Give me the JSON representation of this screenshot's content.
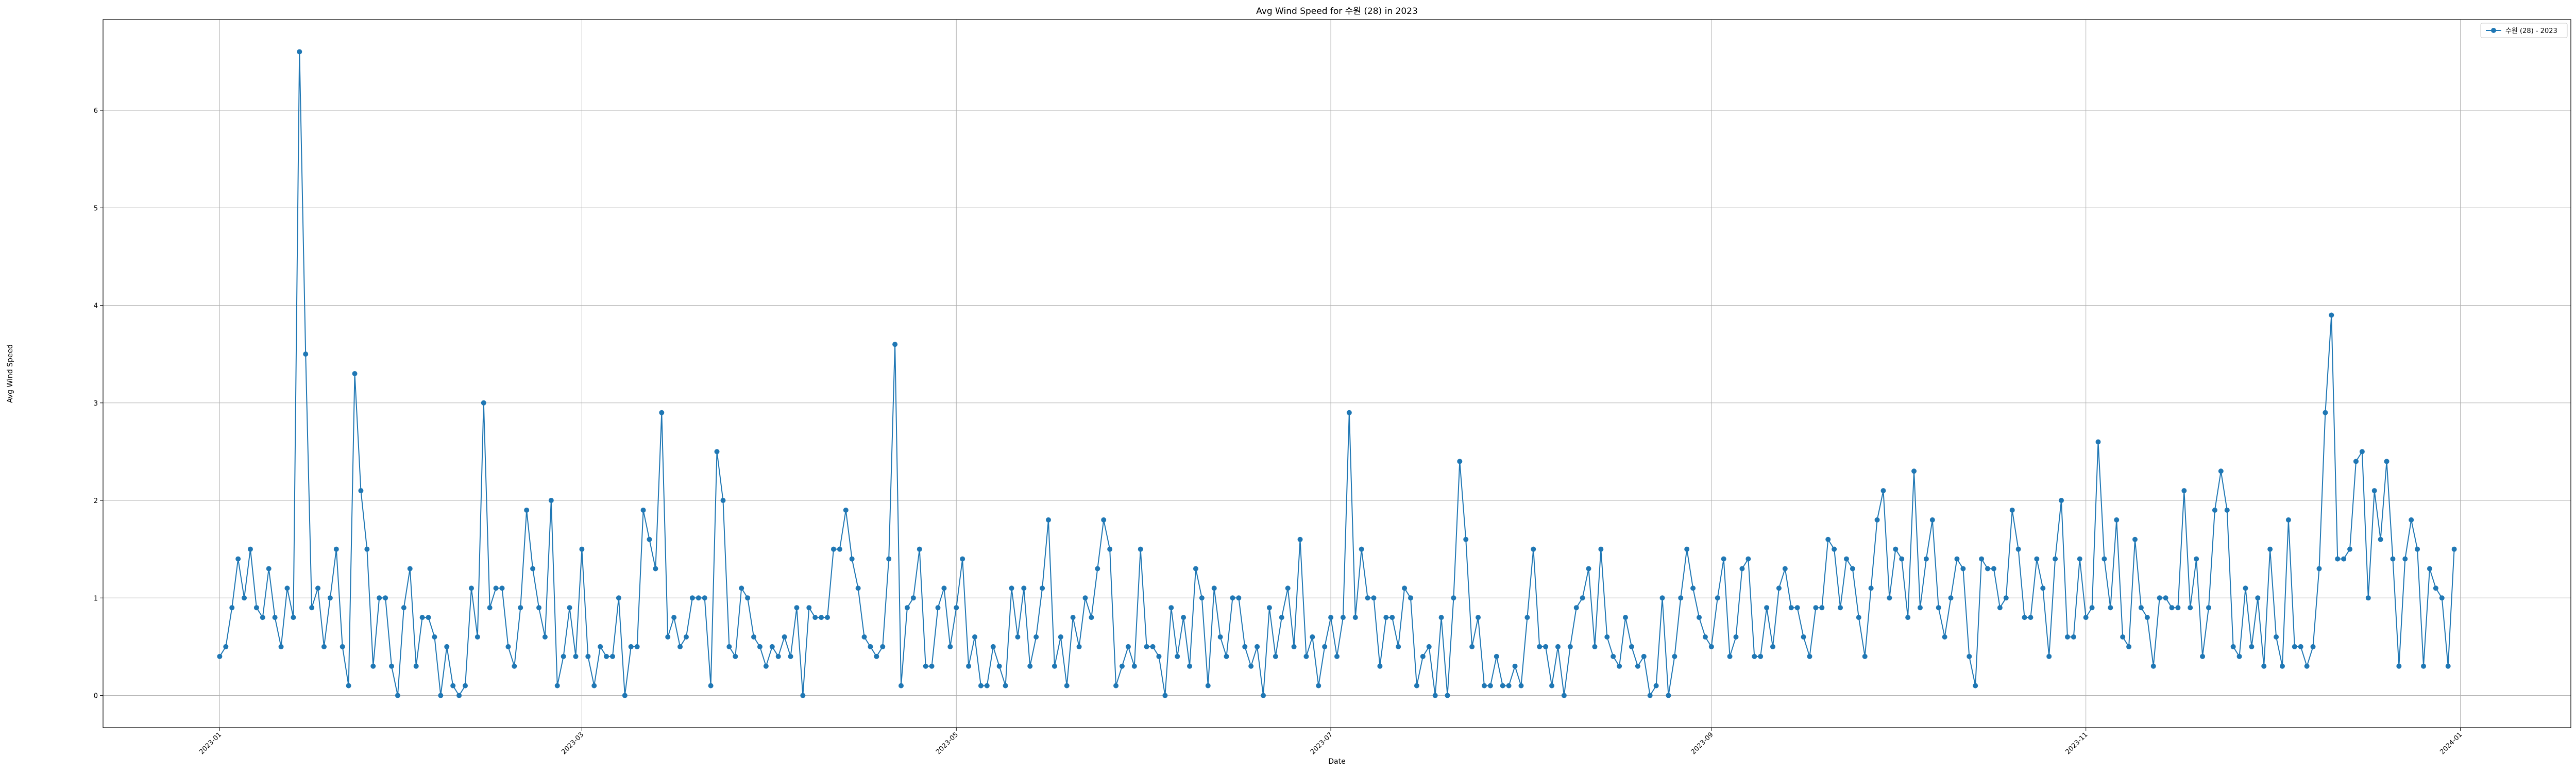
{
  "chart_data": {
    "type": "line",
    "title": "Avg Wind Speed for 수원 (28) in 2023",
    "xlabel": "Date",
    "ylabel": "Avg Wind Speed",
    "xlim": [
      "2022-12-13",
      "2024-01-19"
    ],
    "ylim": [
      -0.33,
      6.93
    ],
    "grid": true,
    "legend_position": "top-right",
    "x_ticks": [
      "2023-01",
      "2023-03",
      "2023-05",
      "2023-07",
      "2023-09",
      "2023-11",
      "2024-01"
    ],
    "y_ticks": [
      "0",
      "1",
      "2",
      "3",
      "4",
      "5",
      "6"
    ],
    "color": "#1f77b4",
    "series": [
      {
        "name": "수원 (28) - 2023",
        "start_date": "2023-01-01",
        "values": [
          0.4,
          0.5,
          0.9,
          1.4,
          1.0,
          1.5,
          0.9,
          0.8,
          1.3,
          0.8,
          0.5,
          1.1,
          0.8,
          6.6,
          3.5,
          0.9,
          1.1,
          0.5,
          1.0,
          1.5,
          0.5,
          0.1,
          3.3,
          2.1,
          1.5,
          0.3,
          1.0,
          1.0,
          0.3,
          0.0,
          0.9,
          1.3,
          0.3,
          0.8,
          0.8,
          0.6,
          0.0,
          0.5,
          0.1,
          0.0,
          0.1,
          1.1,
          0.6,
          3.0,
          0.9,
          1.1,
          1.1,
          0.5,
          0.3,
          0.9,
          1.9,
          1.3,
          0.9,
          0.6,
          2.0,
          0.1,
          0.4,
          0.9,
          0.4,
          1.5,
          0.4,
          0.1,
          0.5,
          0.4,
          0.4,
          1.0,
          0.0,
          0.5,
          0.5,
          1.9,
          1.6,
          1.3,
          2.9,
          0.6,
          0.8,
          0.5,
          0.6,
          1.0,
          1.0,
          1.0,
          0.1,
          2.5,
          2.0,
          0.5,
          0.4,
          1.1,
          1.0,
          0.6,
          0.5,
          0.3,
          0.5,
          0.4,
          0.6,
          0.4,
          0.9,
          0.0,
          0.9,
          0.8,
          0.8,
          0.8,
          1.5,
          1.5,
          1.9,
          1.4,
          1.1,
          0.6,
          0.5,
          0.4,
          0.5,
          1.4,
          3.6,
          0.1,
          0.9,
          1.0,
          1.5,
          0.3,
          0.3,
          0.9,
          1.1,
          0.5,
          0.9,
          1.4,
          0.3,
          0.6,
          0.1,
          0.1,
          0.5,
          0.3,
          0.1,
          1.1,
          0.6,
          1.1,
          0.3,
          0.6,
          1.1,
          1.8,
          0.3,
          0.6,
          0.1,
          0.8,
          0.5,
          1.0,
          0.8,
          1.3,
          1.8,
          1.5,
          0.1,
          0.3,
          0.5,
          0.3,
          1.5,
          0.5,
          0.5,
          0.4,
          0.0,
          0.9,
          0.4,
          0.8,
          0.3,
          1.3,
          1.0,
          0.1,
          1.1,
          0.6,
          0.4,
          1.0,
          1.0,
          0.5,
          0.3,
          0.5,
          0.0,
          0.9,
          0.4,
          0.8,
          1.1,
          0.5,
          1.6,
          0.4,
          0.6,
          0.1,
          0.5,
          0.8,
          0.4,
          0.8,
          2.9,
          0.8,
          1.5,
          1.0,
          1.0,
          0.3,
          0.8,
          0.8,
          0.5,
          1.1,
          1.0,
          0.1,
          0.4,
          0.5,
          0.0,
          0.8,
          0.0,
          1.0,
          2.4,
          1.6,
          0.5,
          0.8,
          0.1,
          0.1,
          0.4,
          0.1,
          0.1,
          0.3,
          0.1,
          0.8,
          1.5,
          0.5,
          0.5,
          0.1,
          0.5,
          0.0,
          0.5,
          0.9,
          1.0,
          1.3,
          0.5,
          1.5,
          0.6,
          0.4,
          0.3,
          0.8,
          0.5,
          0.3,
          0.4,
          0.0,
          0.1,
          1.0,
          0.0,
          0.4,
          1.0,
          1.5,
          1.1,
          0.8,
          0.6,
          0.5,
          1.0,
          1.4,
          0.4,
          0.6,
          1.3,
          1.4,
          0.4,
          0.4,
          0.9,
          0.5,
          1.1,
          1.3,
          0.9,
          0.9,
          0.6,
          0.4,
          0.9,
          0.9,
          1.6,
          1.5,
          0.9,
          1.4,
          1.3,
          0.8,
          0.4,
          1.1,
          1.8,
          2.1,
          1.0,
          1.5,
          1.4,
          0.8,
          2.3,
          0.9,
          1.4,
          1.8,
          0.9,
          0.6,
          1.0,
          1.4,
          1.3,
          0.4,
          0.1,
          1.4,
          1.3,
          1.3,
          0.9,
          1.0,
          1.9,
          1.5,
          0.8,
          0.8,
          1.4,
          1.1,
          0.4,
          1.4,
          2.0,
          0.6,
          0.6,
          1.4,
          0.8,
          0.9,
          2.6,
          1.4,
          0.9,
          1.8,
          0.6,
          0.5,
          1.6,
          0.9,
          0.8,
          0.3,
          1.0,
          1.0,
          0.9,
          0.9,
          2.1,
          0.9,
          1.4,
          0.4,
          0.9,
          1.9,
          2.3,
          1.9,
          0.5,
          0.4,
          1.1,
          0.5,
          1.0,
          0.3,
          1.5,
          0.6,
          0.3,
          1.8,
          0.5,
          0.5,
          0.3,
          0.5,
          1.3,
          2.9,
          3.9,
          1.4,
          1.4,
          1.5,
          2.4,
          2.5,
          1.0,
          2.1,
          1.6,
          2.4,
          1.4,
          0.3,
          1.4,
          1.8,
          1.5,
          0.3,
          1.3,
          1.1,
          1.0,
          0.3,
          1.5
        ]
      }
    ]
  }
}
